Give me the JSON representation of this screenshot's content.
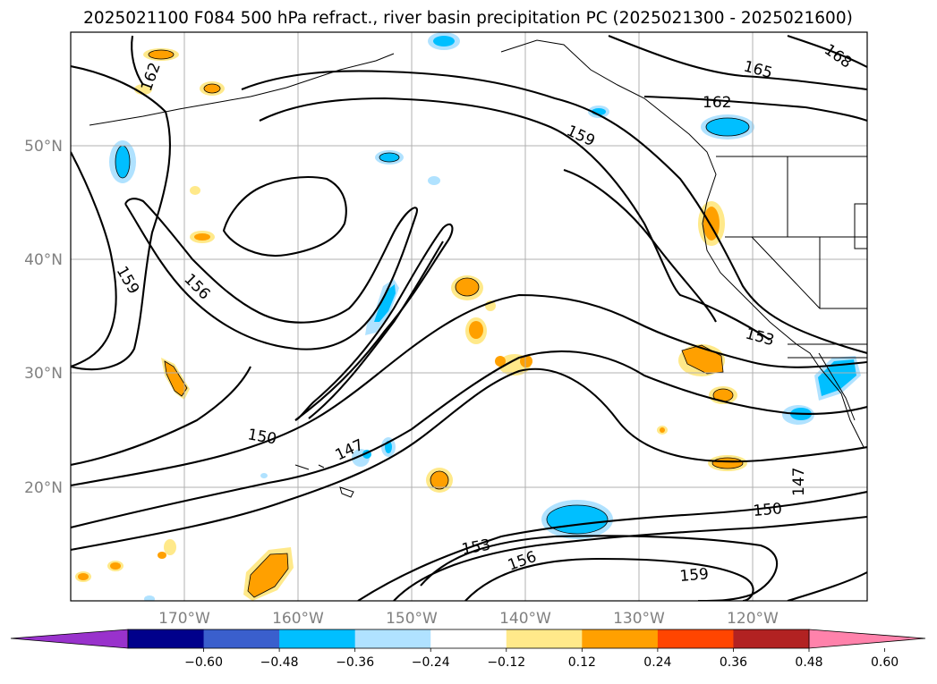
{
  "title": "2025021100 F084 500 hPa refract., river basin precipitation PC (2025021300 - 2025021600)",
  "map": {
    "lat_labels": [
      "50°N",
      "40°N",
      "30°N",
      "20°N"
    ],
    "lon_labels": [
      "170°W",
      "160°W",
      "150°W",
      "140°W",
      "130°W",
      "120°W"
    ],
    "contour_labels": [
      "162",
      "165",
      "168",
      "162",
      "159",
      "159",
      "156",
      "153",
      "150",
      "147",
      "147",
      "150",
      "153",
      "156",
      "159"
    ],
    "contour_color": "#000000",
    "grid": true
  },
  "colorbar": {
    "labels": [
      "−0.60",
      "−0.48",
      "−0.36",
      "−0.24",
      "−0.12",
      "0.12",
      "0.24",
      "0.36",
      "0.48",
      "0.60"
    ],
    "colors": [
      "#9932cc",
      "#00008b",
      "#3a5fcd",
      "#00bfff",
      "#b0e2ff",
      "#ffffff",
      "#ffe98a",
      "#ffa000",
      "#ff4500",
      "#b22222",
      "#ff82ab"
    ],
    "extend": "both"
  }
}
